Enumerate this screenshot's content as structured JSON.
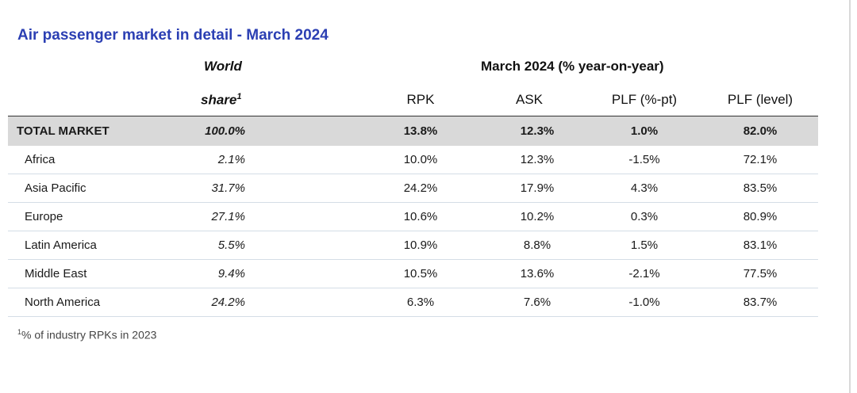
{
  "title": "Air passenger market in detail - March 2024",
  "header": {
    "world_line1": "World",
    "world_line2": "share",
    "world_sup": "1",
    "group_label": "March 2024 (% year-on-year)",
    "columns": [
      "RPK",
      "ASK",
      "PLF (%-pt)",
      "PLF (level)"
    ]
  },
  "total": {
    "name": "TOTAL MARKET",
    "share": "100.0%",
    "rpk": "13.8%",
    "ask": "12.3%",
    "plf_pt": "1.0%",
    "plf_level": "82.0%"
  },
  "rows": [
    {
      "name": "Africa",
      "share": "2.1%",
      "rpk": "10.0%",
      "ask": "12.3%",
      "plf_pt": "-1.5%",
      "plf_level": "72.1%"
    },
    {
      "name": "Asia Pacific",
      "share": "31.7%",
      "rpk": "24.2%",
      "ask": "17.9%",
      "plf_pt": "4.3%",
      "plf_level": "83.5%"
    },
    {
      "name": "Europe",
      "share": "27.1%",
      "rpk": "10.6%",
      "ask": "10.2%",
      "plf_pt": "0.3%",
      "plf_level": "80.9%"
    },
    {
      "name": "Latin America",
      "share": "5.5%",
      "rpk": "10.9%",
      "ask": "8.8%",
      "plf_pt": "1.5%",
      "plf_level": "83.1%"
    },
    {
      "name": "Middle East",
      "share": "9.4%",
      "rpk": "10.5%",
      "ask": "13.6%",
      "plf_pt": "-2.1%",
      "plf_level": "77.5%"
    },
    {
      "name": "North America",
      "share": "24.2%",
      "rpk": "6.3%",
      "ask": "7.6%",
      "plf_pt": "-1.0%",
      "plf_level": "83.7%"
    }
  ],
  "footnote": {
    "sup": "1",
    "text": "% of industry RPKs in 2023"
  },
  "colors": {
    "title": "#2b3fb3",
    "total_row_bg": "#d9d9d9",
    "row_divider": "#d4dde6"
  }
}
